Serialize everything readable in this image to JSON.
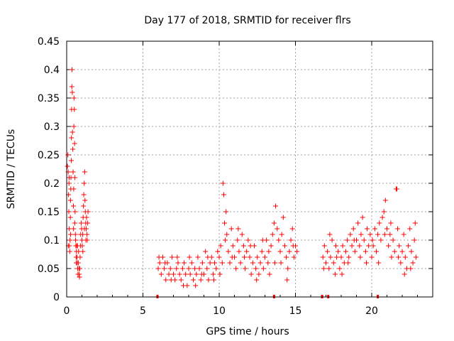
{
  "chart_data": {
    "type": "scatter",
    "title": "Day 177 of 2018, SRMTID for receiver flrs",
    "xlabel": "GPS time / hours",
    "ylabel": "SRMTID / TECUs",
    "xlim": [
      0,
      24
    ],
    "ylim": [
      0,
      0.45
    ],
    "xticks": [
      0,
      5,
      10,
      15,
      20
    ],
    "xtick_labels": [
      "0",
      "5",
      "10",
      "15",
      "20"
    ],
    "yticks": [
      0,
      0.05,
      0.1,
      0.15,
      0.2,
      0.25,
      0.3,
      0.35,
      0.4,
      0.45
    ],
    "ytick_labels": [
      "0",
      "0.05",
      "0.1",
      "0.15",
      "0.2",
      "0.25",
      "0.3",
      "0.35",
      "0.4",
      "0.45"
    ],
    "grid": true,
    "marker": "+",
    "color": "#ff0000",
    "series": [
      {
        "name": "SRMTID",
        "points": [
          [
            0.05,
            0.23
          ],
          [
            0.08,
            0.25
          ],
          [
            0.1,
            0.22
          ],
          [
            0.12,
            0.18
          ],
          [
            0.14,
            0.15
          ],
          [
            0.15,
            0.2
          ],
          [
            0.17,
            0.12
          ],
          [
            0.18,
            0.09
          ],
          [
            0.2,
            0.08
          ],
          [
            0.22,
            0.1
          ],
          [
            0.24,
            0.14
          ],
          [
            0.25,
            0.17
          ],
          [
            0.27,
            0.19
          ],
          [
            0.28,
            0.21
          ],
          [
            0.3,
            0.24
          ],
          [
            0.32,
            0.33
          ],
          [
            0.34,
            0.37
          ],
          [
            0.35,
            0.4
          ],
          [
            0.37,
            0.36
          ],
          [
            0.38,
            0.29
          ],
          [
            0.4,
            0.26
          ],
          [
            0.42,
            0.22
          ],
          [
            0.44,
            0.16
          ],
          [
            0.45,
            0.12
          ],
          [
            0.47,
            0.3
          ],
          [
            0.48,
            0.35
          ],
          [
            0.5,
            0.33
          ],
          [
            0.52,
            0.27
          ],
          [
            0.54,
            0.21
          ],
          [
            0.55,
            0.15
          ],
          [
            0.57,
            0.11
          ],
          [
            0.58,
            0.1
          ],
          [
            0.6,
            0.09
          ],
          [
            0.62,
            0.07
          ],
          [
            0.64,
            0.08
          ],
          [
            0.66,
            0.09
          ],
          [
            0.68,
            0.07
          ],
          [
            0.7,
            0.06
          ],
          [
            0.72,
            0.05
          ],
          [
            0.74,
            0.04
          ],
          [
            0.76,
            0.06
          ],
          [
            0.78,
            0.08
          ],
          [
            0.8,
            0.05
          ],
          [
            0.82,
            0.04
          ],
          [
            0.84,
            0.035
          ],
          [
            0.86,
            0.05
          ],
          [
            0.88,
            0.07
          ],
          [
            0.9,
            0.09
          ],
          [
            0.92,
            0.11
          ],
          [
            0.95,
            0.13
          ],
          [
            0.98,
            0.12
          ],
          [
            1.0,
            0.1
          ],
          [
            1.02,
            0.09
          ],
          [
            1.05,
            0.11
          ],
          [
            1.08,
            0.14
          ],
          [
            1.1,
            0.16
          ],
          [
            1.12,
            0.18
          ],
          [
            1.15,
            0.2
          ],
          [
            1.18,
            0.22
          ],
          [
            1.2,
            0.17
          ],
          [
            1.22,
            0.15
          ],
          [
            1.25,
            0.13
          ],
          [
            1.28,
            0.12
          ],
          [
            1.3,
            0.14
          ],
          [
            1.33,
            0.11
          ],
          [
            1.35,
            0.1
          ],
          [
            1.38,
            0.13
          ],
          [
            1.4,
            0.15
          ],
          [
            0.11,
            0.09
          ],
          [
            0.16,
            0.21
          ],
          [
            0.26,
            0.11
          ],
          [
            0.31,
            0.28
          ],
          [
            0.46,
            0.19
          ],
          [
            0.53,
            0.13
          ],
          [
            0.63,
            0.06
          ],
          [
            0.71,
            0.09
          ],
          [
            1.06,
            0.08
          ],
          [
            1.16,
            0.12
          ],
          [
            1.26,
            0.1
          ],
          [
            6.0,
            0.05
          ],
          [
            6.1,
            0.06
          ],
          [
            6.2,
            0.04
          ],
          [
            6.3,
            0.07
          ],
          [
            6.4,
            0.05
          ],
          [
            6.5,
            0.03
          ],
          [
            6.6,
            0.06
          ],
          [
            6.7,
            0.04
          ],
          [
            6.8,
            0.05
          ],
          [
            6.9,
            0.07
          ],
          [
            7.0,
            0.04
          ],
          [
            7.1,
            0.03
          ],
          [
            7.2,
            0.05
          ],
          [
            7.3,
            0.06
          ],
          [
            7.4,
            0.04
          ],
          [
            7.5,
            0.03
          ],
          [
            7.6,
            0.05
          ],
          [
            7.7,
            0.06
          ],
          [
            7.8,
            0.04
          ],
          [
            7.9,
            0.02
          ],
          [
            8.0,
            0.05
          ],
          [
            8.1,
            0.04
          ],
          [
            8.2,
            0.06
          ],
          [
            8.3,
            0.03
          ],
          [
            8.4,
            0.05
          ],
          [
            8.5,
            0.04
          ],
          [
            8.6,
            0.07
          ],
          [
            8.7,
            0.05
          ],
          [
            8.8,
            0.03
          ],
          [
            8.9,
            0.06
          ],
          [
            9.0,
            0.04
          ],
          [
            9.1,
            0.08
          ],
          [
            9.2,
            0.05
          ],
          [
            9.3,
            0.03
          ],
          [
            9.4,
            0.06
          ],
          [
            9.5,
            0.07
          ],
          [
            9.6,
            0.04
          ],
          [
            9.7,
            0.06
          ],
          [
            9.8,
            0.05
          ],
          [
            9.9,
            0.08
          ],
          [
            10.0,
            0.07
          ],
          [
            10.1,
            0.09
          ],
          [
            10.2,
            0.06
          ],
          [
            10.25,
            0.2
          ],
          [
            10.3,
            0.18
          ],
          [
            10.35,
            0.13
          ],
          [
            10.4,
            0.1
          ],
          [
            10.5,
            0.11
          ],
          [
            10.6,
            0.08
          ],
          [
            10.7,
            0.06
          ],
          [
            10.8,
            0.12
          ],
          [
            10.9,
            0.09
          ],
          [
            11.0,
            0.07
          ],
          [
            11.1,
            0.05
          ],
          [
            11.2,
            0.1
          ],
          [
            11.3,
            0.08
          ],
          [
            11.4,
            0.06
          ],
          [
            11.5,
            0.11
          ],
          [
            11.6,
            0.09
          ],
          [
            11.7,
            0.05
          ],
          [
            11.8,
            0.08
          ],
          [
            11.9,
            0.1
          ],
          [
            12.0,
            0.07
          ],
          [
            12.1,
            0.04
          ],
          [
            12.2,
            0.06
          ],
          [
            12.3,
            0.09
          ],
          [
            12.4,
            0.05
          ],
          [
            12.5,
            0.07
          ],
          [
            12.6,
            0.04
          ],
          [
            12.7,
            0.06
          ],
          [
            12.8,
            0.08
          ],
          [
            12.9,
            0.05
          ],
          [
            13.0,
            0.07
          ],
          [
            13.1,
            0.1
          ],
          [
            13.2,
            0.06
          ],
          [
            13.3,
            0.04
          ],
          [
            13.4,
            0.09
          ],
          [
            13.5,
            0.11
          ],
          [
            13.6,
            0.13
          ],
          [
            13.7,
            0.16
          ],
          [
            13.8,
            0.12
          ],
          [
            13.9,
            0.1
          ],
          [
            14.0,
            0.08
          ],
          [
            14.1,
            0.11
          ],
          [
            14.2,
            0.14
          ],
          [
            14.3,
            0.09
          ],
          [
            14.4,
            0.07
          ],
          [
            14.5,
            0.05
          ],
          [
            14.6,
            0.08
          ],
          [
            14.7,
            0.1
          ],
          [
            14.8,
            0.12
          ],
          [
            14.9,
            0.07
          ],
          [
            15.0,
            0.09
          ],
          [
            15.1,
            0.08
          ],
          [
            6.05,
            0.07
          ],
          [
            6.45,
            0.06
          ],
          [
            6.85,
            0.03
          ],
          [
            7.25,
            0.07
          ],
          [
            7.65,
            0.02
          ],
          [
            8.05,
            0.07
          ],
          [
            8.45,
            0.02
          ],
          [
            8.85,
            0.04
          ],
          [
            9.25,
            0.07
          ],
          [
            9.65,
            0.03
          ],
          [
            10.05,
            0.04
          ],
          [
            10.45,
            0.15
          ],
          [
            10.85,
            0.07
          ],
          [
            11.25,
            0.12
          ],
          [
            11.65,
            0.07
          ],
          [
            12.05,
            0.09
          ],
          [
            12.45,
            0.03
          ],
          [
            12.85,
            0.1
          ],
          [
            13.25,
            0.08
          ],
          [
            13.65,
            0.06
          ],
          [
            14.05,
            0.06
          ],
          [
            14.45,
            0.03
          ],
          [
            14.85,
            0.09
          ],
          [
            16.8,
            0.07
          ],
          [
            16.9,
            0.09
          ],
          [
            17.0,
            0.06
          ],
          [
            17.1,
            0.08
          ],
          [
            17.2,
            0.05
          ],
          [
            17.3,
            0.07
          ],
          [
            17.4,
            0.1
          ],
          [
            17.5,
            0.06
          ],
          [
            17.6,
            0.04
          ],
          [
            17.7,
            0.07
          ],
          [
            17.8,
            0.08
          ],
          [
            17.9,
            0.05
          ],
          [
            18.0,
            0.07
          ],
          [
            18.1,
            0.09
          ],
          [
            18.2,
            0.06
          ],
          [
            18.3,
            0.08
          ],
          [
            18.4,
            0.1
          ],
          [
            18.5,
            0.07
          ],
          [
            18.6,
            0.11
          ],
          [
            18.7,
            0.09
          ],
          [
            18.8,
            0.12
          ],
          [
            18.9,
            0.08
          ],
          [
            19.0,
            0.1
          ],
          [
            19.1,
            0.13
          ],
          [
            19.2,
            0.09
          ],
          [
            19.3,
            0.11
          ],
          [
            19.4,
            0.14
          ],
          [
            19.5,
            0.1
          ],
          [
            19.6,
            0.08
          ],
          [
            19.7,
            0.12
          ],
          [
            19.8,
            0.09
          ],
          [
            19.9,
            0.11
          ],
          [
            20.0,
            0.07
          ],
          [
            20.1,
            0.09
          ],
          [
            20.2,
            0.12
          ],
          [
            20.3,
            0.08
          ],
          [
            20.4,
            0.11
          ],
          [
            20.5,
            0.13
          ],
          [
            20.6,
            0.1
          ],
          [
            20.7,
            0.14
          ],
          [
            20.8,
            0.15
          ],
          [
            20.9,
            0.17
          ],
          [
            21.0,
            0.12
          ],
          [
            21.1,
            0.09
          ],
          [
            21.2,
            0.11
          ],
          [
            21.3,
            0.07
          ],
          [
            21.4,
            0.1
          ],
          [
            21.5,
            0.08
          ],
          [
            21.6,
            0.19
          ],
          [
            21.65,
            0.19
          ],
          [
            21.7,
            0.12
          ],
          [
            21.8,
            0.09
          ],
          [
            21.9,
            0.06
          ],
          [
            22.0,
            0.08
          ],
          [
            22.1,
            0.11
          ],
          [
            22.2,
            0.07
          ],
          [
            22.3,
            0.05
          ],
          [
            22.4,
            0.09
          ],
          [
            22.5,
            0.12
          ],
          [
            22.6,
            0.08
          ],
          [
            22.7,
            0.06
          ],
          [
            22.8,
            0.1
          ],
          [
            22.9,
            0.07
          ],
          [
            16.85,
            0.05
          ],
          [
            17.25,
            0.11
          ],
          [
            17.65,
            0.09
          ],
          [
            18.05,
            0.04
          ],
          [
            18.45,
            0.06
          ],
          [
            18.85,
            0.1
          ],
          [
            19.25,
            0.07
          ],
          [
            19.65,
            0.06
          ],
          [
            20.05,
            0.1
          ],
          [
            20.45,
            0.06
          ],
          [
            20.85,
            0.11
          ],
          [
            21.25,
            0.13
          ],
          [
            21.75,
            0.07
          ],
          [
            22.15,
            0.04
          ],
          [
            22.55,
            0.05
          ],
          [
            22.85,
            0.13
          ]
        ]
      }
    ],
    "gap_markers_x": [
      5.95,
      13.6,
      16.75,
      17.15,
      20.4
    ]
  }
}
